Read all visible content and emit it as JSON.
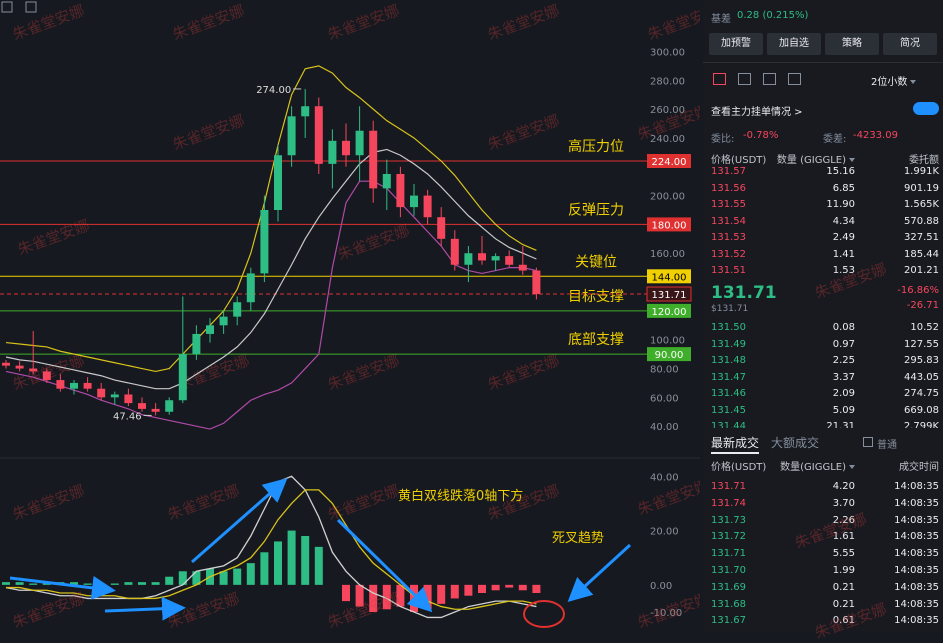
{
  "basis": {
    "label": "基差",
    "value": "0.28 (0.215%)"
  },
  "buttons": [
    "加预警",
    "加自选",
    "策略",
    "简况"
  ],
  "decimal_select": "2位小数",
  "depth_toggle": "查看主力挂单情况 >",
  "ratio": {
    "label": "委比:",
    "value": "-0.78%"
  },
  "diff": {
    "label": "委差:",
    "value": "-4233.09"
  },
  "orderbook": {
    "headers": [
      "价格(USDT)",
      "数量 (GIGGLE)",
      "委托额"
    ],
    "asks": [
      [
        "131.57",
        "15.16",
        "1.991K"
      ],
      [
        "131.56",
        "6.85",
        "901.19"
      ],
      [
        "131.55",
        "11.90",
        "1.565K"
      ],
      [
        "131.54",
        "4.34",
        "570.88"
      ],
      [
        "131.53",
        "2.49",
        "327.51"
      ],
      [
        "131.52",
        "1.41",
        "185.44"
      ],
      [
        "131.51",
        "1.53",
        "201.21"
      ]
    ],
    "last": "131.71",
    "last_usd": "$131.71",
    "change_pct": "-16.86%",
    "change": "-26.71",
    "bids": [
      [
        "131.50",
        "0.08",
        "10.52"
      ],
      [
        "131.49",
        "0.97",
        "127.55"
      ],
      [
        "131.48",
        "2.25",
        "295.83"
      ],
      [
        "131.47",
        "3.37",
        "443.05"
      ],
      [
        "131.46",
        "2.09",
        "274.75"
      ],
      [
        "131.45",
        "5.09",
        "669.08"
      ],
      [
        "131.44",
        "21.31",
        "2.799K"
      ]
    ]
  },
  "trades": {
    "tabs": [
      "最新成交",
      "大额成交"
    ],
    "filter": "普通",
    "headers": [
      "价格(USDT)",
      "数量(GIGGLE)",
      "成交时间"
    ],
    "rows": [
      {
        "price": "131.71",
        "qty": "4.20",
        "time": "14:08:35",
        "color": "#f6465d"
      },
      {
        "price": "131.74",
        "qty": "3.70",
        "time": "14:08:35",
        "color": "#f6465d"
      },
      {
        "price": "131.73",
        "qty": "2.26",
        "time": "14:08:35",
        "color": "#2ebd85"
      },
      {
        "price": "131.72",
        "qty": "1.61",
        "time": "14:08:35",
        "color": "#2ebd85"
      },
      {
        "price": "131.71",
        "qty": "5.55",
        "time": "14:08:35",
        "color": "#2ebd85"
      },
      {
        "price": "131.70",
        "qty": "1.99",
        "time": "14:08:35",
        "color": "#2ebd85"
      },
      {
        "price": "131.69",
        "qty": "0.21",
        "time": "14:08:35",
        "color": "#2ebd85"
      },
      {
        "price": "131.68",
        "qty": "0.21",
        "time": "14:08:35",
        "color": "#2ebd85"
      },
      {
        "price": "131.67",
        "qty": "0.61",
        "time": "14:08:35",
        "color": "#2ebd85"
      }
    ]
  },
  "chart": {
    "ylim": [
      20,
      326
    ],
    "yticks": [
      {
        "value": 300,
        "label": "300.00"
      },
      {
        "value": 280,
        "label": "280.00"
      },
      {
        "value": 260,
        "label": "260.00"
      },
      {
        "value": 240,
        "label": "240.00"
      },
      {
        "value": 200,
        "label": "200.00"
      },
      {
        "value": 160,
        "label": "160.00"
      },
      {
        "value": 100,
        "label": "100.00"
      },
      {
        "value": 80,
        "label": "80.00"
      },
      {
        "value": 60,
        "label": "60.00"
      },
      {
        "value": 40,
        "label": "40.00"
      }
    ],
    "levels": [
      {
        "value": 224,
        "label": "224.00",
        "color": "#e03131",
        "note": "高压力位"
      },
      {
        "value": 180,
        "label": "180.00",
        "color": "#e03131",
        "note": "反弹压力"
      },
      {
        "value": 144,
        "label": "144.00",
        "color": "#f0d000",
        "note": "关键位"
      },
      {
        "value": 120,
        "label": "120.00",
        "color": "#3fae2a",
        "note": "目标支撑"
      },
      {
        "value": 90,
        "label": "90.00",
        "color": "#3fae2a",
        "note": "底部支撑"
      }
    ],
    "current": {
      "value": 131.71,
      "label": "131.71",
      "color": "#e03131"
    },
    "high": {
      "value": 274,
      "label": "274.00",
      "index": 22
    },
    "low": {
      "value": 47.46,
      "label": "47.46",
      "index": 11
    },
    "up_color": "#2ebd85",
    "down_color": "#f6465d",
    "watermark": "朱雀堂安娜",
    "candles": [
      [
        84,
        86,
        80,
        82
      ],
      [
        82,
        85,
        78,
        80
      ],
      [
        80,
        106,
        76,
        78
      ],
      [
        78,
        80,
        70,
        72
      ],
      [
        72,
        76,
        64,
        66
      ],
      [
        66,
        72,
        62,
        70
      ],
      [
        70,
        74,
        64,
        66
      ],
      [
        66,
        70,
        58,
        60
      ],
      [
        60,
        64,
        55,
        62
      ],
      [
        62,
        66,
        54,
        56
      ],
      [
        56,
        60,
        50,
        52
      ],
      [
        52,
        56,
        47.46,
        50
      ],
      [
        50,
        60,
        48,
        58
      ],
      [
        58,
        130,
        56,
        90
      ],
      [
        90,
        110,
        86,
        104
      ],
      [
        104,
        115,
        98,
        110
      ],
      [
        110,
        120,
        104,
        116
      ],
      [
        116,
        130,
        110,
        126
      ],
      [
        126,
        150,
        120,
        146
      ],
      [
        146,
        200,
        140,
        190
      ],
      [
        190,
        235,
        182,
        228
      ],
      [
        228,
        262,
        220,
        255
      ],
      [
        255,
        274,
        240,
        262
      ],
      [
        262,
        268,
        215,
        222
      ],
      [
        222,
        246,
        205,
        238
      ],
      [
        238,
        250,
        220,
        228
      ],
      [
        228,
        262,
        210,
        245
      ],
      [
        245,
        252,
        195,
        205
      ],
      [
        205,
        225,
        190,
        215
      ],
      [
        215,
        220,
        185,
        192
      ],
      [
        192,
        208,
        186,
        200
      ],
      [
        200,
        204,
        180,
        185
      ],
      [
        185,
        192,
        165,
        170
      ],
      [
        170,
        176,
        148,
        152
      ],
      [
        152,
        165,
        140,
        160
      ],
      [
        160,
        172,
        152,
        155
      ],
      [
        155,
        160,
        148,
        158
      ],
      [
        158,
        162,
        150,
        152
      ],
      [
        152,
        165,
        145,
        148
      ],
      [
        148,
        150,
        128,
        131.71
      ]
    ],
    "bands": [
      {
        "color": "#d8c21a",
        "values": [
          98,
          97,
          96,
          95,
          92,
          90,
          88,
          86,
          84,
          82,
          80,
          78,
          80,
          90,
          100,
          110,
          120,
          135,
          160,
          195,
          235,
          270,
          288,
          290,
          285,
          275,
          268,
          260,
          252,
          246,
          240,
          232,
          224,
          214,
          202,
          190,
          180,
          172,
          166,
          162
        ]
      },
      {
        "color": "#c9c9c9",
        "values": [
          88,
          86,
          85,
          83,
          81,
          79,
          77,
          75,
          72,
          70,
          68,
          66,
          66,
          70,
          76,
          82,
          88,
          95,
          105,
          118,
          135,
          152,
          170,
          185,
          198,
          210,
          222,
          230,
          232,
          228,
          222,
          215,
          206,
          196,
          186,
          178,
          170,
          164,
          160,
          156
        ]
      },
      {
        "color": "#b04aa8",
        "values": [
          78,
          76,
          74,
          71,
          68,
          65,
          62,
          58,
          55,
          52,
          48,
          46,
          44,
          42,
          40,
          38,
          42,
          50,
          58,
          62,
          65,
          70,
          80,
          90,
          150,
          195,
          210,
          210,
          205,
          195,
          185,
          175,
          165,
          152,
          148,
          146,
          148,
          150,
          150,
          148
        ]
      }
    ]
  },
  "macd": {
    "ylim": [
      -17,
      46
    ],
    "yticks": [
      {
        "value": 40,
        "label": "40.00"
      },
      {
        "value": 20,
        "label": "20.00"
      },
      {
        "value": 0,
        "label": "0.00"
      },
      {
        "value": -10,
        "label": "-10.00"
      }
    ],
    "hist": [
      1,
      1,
      0.5,
      0.5,
      1,
      1,
      0.5,
      0.5,
      0.5,
      1,
      1,
      1,
      3,
      5,
      5,
      6,
      5,
      6,
      8,
      12,
      16,
      20,
      18,
      14,
      0,
      -6,
      -8,
      -10,
      -9,
      -8,
      -10,
      -9,
      -7,
      -5,
      -4,
      -3,
      -2,
      -1,
      -2,
      -3
    ],
    "dif": {
      "color": "#d0d0d0",
      "values": [
        -1,
        -2,
        -2,
        -3,
        -4,
        -4,
        -5,
        -5,
        -5,
        -5,
        -5,
        -4,
        -2,
        0,
        5,
        6,
        7,
        10,
        18,
        28,
        38,
        40,
        35,
        25,
        12,
        5,
        0,
        -3,
        -5,
        -8,
        -10,
        -12,
        -12,
        -10,
        -8,
        -7,
        -6,
        -6,
        -7,
        -8
      ]
    },
    "dea": {
      "color": "#d8c21a",
      "values": [
        -1,
        -1,
        -2,
        -2,
        -3,
        -3,
        -4,
        -4,
        -4,
        -5,
        -5,
        -5,
        -4,
        -2,
        0,
        3,
        5,
        7,
        10,
        16,
        24,
        30,
        35,
        35,
        30,
        22,
        14,
        8,
        4,
        0,
        -4,
        -6,
        -8,
        -9,
        -9,
        -8,
        -7,
        -6,
        -6,
        -7
      ]
    },
    "annotations": [
      "黄白双线跌落0轴下方",
      "死叉趋势"
    ]
  }
}
